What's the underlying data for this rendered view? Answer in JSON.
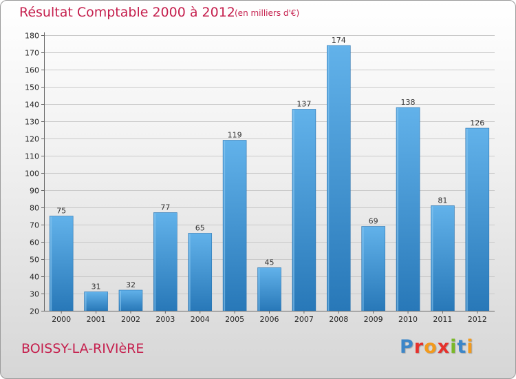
{
  "title": "Résultat Comptable 2000 à 2012",
  "subtitle": "(en milliers d'€)",
  "commune": "BOISSY-LA-RIVIèRE",
  "logo": {
    "p1": "P",
    "p2": "r",
    "p3": "o",
    "p4": "x",
    "p5": "i",
    "p6": "t",
    "p7": "i"
  },
  "colors": {
    "title": "#c51f4d",
    "bar_top": "#5faee6",
    "bar_bottom": "#2a7fc0"
  },
  "chart_data": {
    "type": "bar",
    "title": "Résultat Comptable 2000 à 2012",
    "subtitle": "(en milliers d'€)",
    "categories": [
      "2000",
      "2001",
      "2002",
      "2003",
      "2004",
      "2005",
      "2006",
      "2007",
      "2008",
      "2009",
      "2010",
      "2011",
      "2012"
    ],
    "values": [
      75,
      31,
      32,
      77,
      65,
      119,
      45,
      137,
      174,
      69,
      138,
      81,
      126
    ],
    "ylim": [
      20,
      180
    ],
    "yticks": [
      20,
      30,
      40,
      50,
      60,
      70,
      80,
      90,
      100,
      110,
      120,
      130,
      140,
      150,
      160,
      170,
      180
    ],
    "grid": true
  }
}
